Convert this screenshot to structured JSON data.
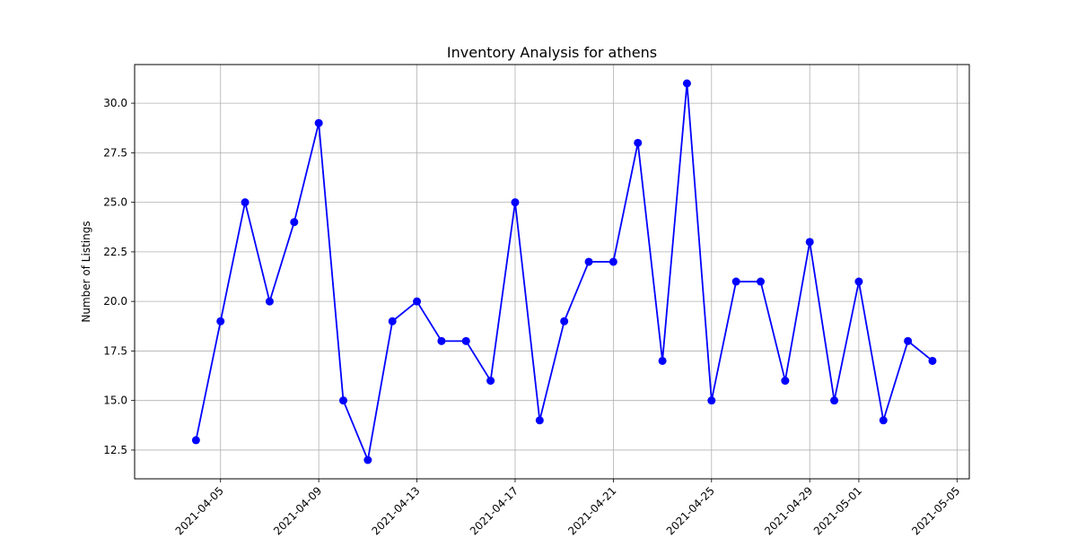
{
  "chart_data": {
    "type": "line",
    "title": "Inventory Analysis for athens",
    "xlabel": "",
    "ylabel": "Number of Listings",
    "grid": true,
    "line_color": "#0000ff",
    "marker": "circle",
    "x_ticks": [
      "2021-04-05",
      "2021-04-09",
      "2021-04-13",
      "2021-04-17",
      "2021-04-21",
      "2021-04-25",
      "2021-04-29",
      "2021-05-01",
      "2021-05-05"
    ],
    "y_ticks": [
      "12.5",
      "15.0",
      "17.5",
      "20.0",
      "22.5",
      "25.0",
      "27.5",
      "30.0"
    ],
    "xlim": [
      "2021-04-01T12:00",
      "2021-05-05T12:00"
    ],
    "ylim": [
      11.05,
      31.95
    ],
    "x": [
      "2021-04-04",
      "2021-04-05",
      "2021-04-06",
      "2021-04-07",
      "2021-04-08",
      "2021-04-09",
      "2021-04-10",
      "2021-04-11",
      "2021-04-12",
      "2021-04-13",
      "2021-04-14",
      "2021-04-15",
      "2021-04-16",
      "2021-04-17",
      "2021-04-18",
      "2021-04-19",
      "2021-04-20",
      "2021-04-21",
      "2021-04-22",
      "2021-04-23",
      "2021-04-24",
      "2021-04-25",
      "2021-04-26",
      "2021-04-27",
      "2021-04-28",
      "2021-04-29",
      "2021-04-30",
      "2021-05-01",
      "2021-05-02",
      "2021-05-03",
      "2021-05-04"
    ],
    "series": [
      {
        "values": [
          13,
          19,
          25,
          20,
          24,
          29,
          15,
          12,
          19,
          20,
          18,
          18,
          16,
          25,
          14,
          19,
          22,
          22,
          28,
          17,
          31,
          15,
          21,
          21,
          16,
          23,
          15,
          21,
          14,
          18,
          17
        ]
      }
    ]
  }
}
